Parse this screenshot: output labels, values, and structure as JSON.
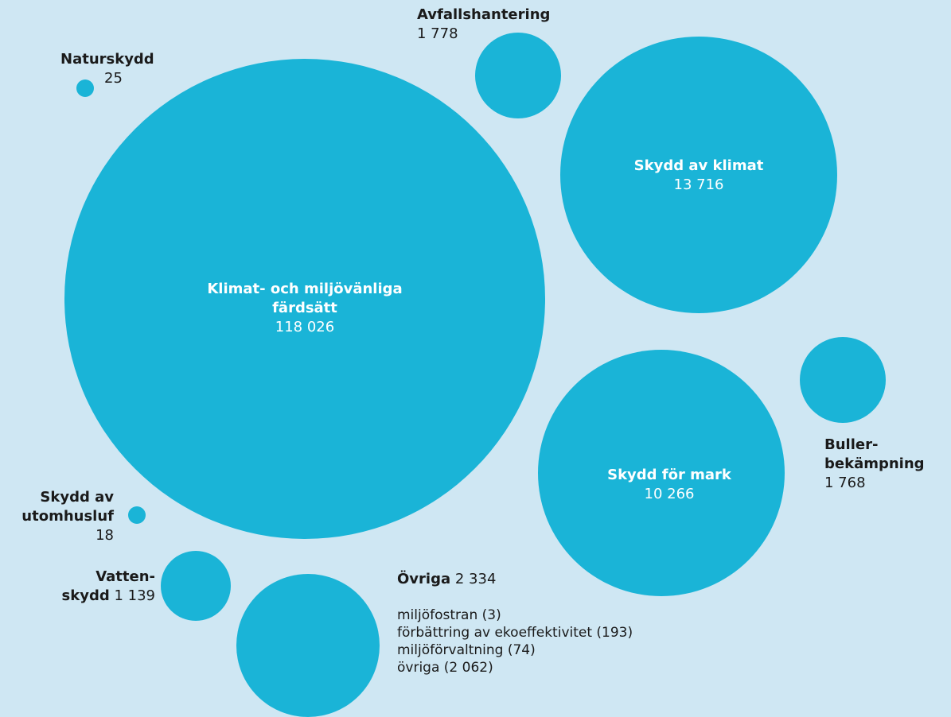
{
  "chart_data": {
    "type": "bubble",
    "bubble_color": "#1ab4d7",
    "background": "#cfe7f3",
    "series": [
      {
        "name": "Klimat- och miljövänliga färdsätt",
        "value": 118026,
        "value_label": "118 026"
      },
      {
        "name": "Skydd av klimat",
        "value": 13716,
        "value_label": "13 716"
      },
      {
        "name": "Skydd för mark",
        "value": 10266,
        "value_label": "10 266"
      },
      {
        "name": "Övriga",
        "value": 2334,
        "value_label": "2 334"
      },
      {
        "name": "Avfallshantering",
        "value": 1778,
        "value_label": "1 778"
      },
      {
        "name": "Buller-bekämpning",
        "value": 1768,
        "value_label": "1 768"
      },
      {
        "name": "Vatten-skydd",
        "value": 1139,
        "value_label": "1 139"
      },
      {
        "name": "Naturskydd",
        "value": 25,
        "value_label": "25"
      },
      {
        "name": "Skydd av utomhusluf",
        "value": 18,
        "value_label": "18"
      }
    ],
    "labels": {
      "klimatfard": {
        "line1": "Klimat- och miljövänliga",
        "line2": "färdsätt",
        "value": "118 026"
      },
      "klimat": {
        "line1": "Skydd av klimat",
        "value": "13 716"
      },
      "mark": {
        "line1": "Skydd för mark",
        "value": "10 266"
      },
      "avfall": {
        "line1": "Avfallshantering",
        "value": "1 778"
      },
      "buller": {
        "line1": "Buller-",
        "line2": "bekämpning",
        "value": "1 768"
      },
      "natur": {
        "line1": "Naturskydd",
        "value": "25"
      },
      "luft": {
        "line1": "Skydd av",
        "line2": "utomhusluf",
        "value": "18"
      },
      "vatten": {
        "line1": "Vatten-",
        "line2": "skydd",
        "value": "1 139"
      },
      "ovriga": {
        "line1": "Övriga",
        "value": "2 334",
        "breakdown": [
          "miljöfostran (3)",
          "förbättring av ekoeffektivitet (193)",
          "miljöförvaltning (74)",
          "övriga (2 062)"
        ]
      }
    }
  }
}
